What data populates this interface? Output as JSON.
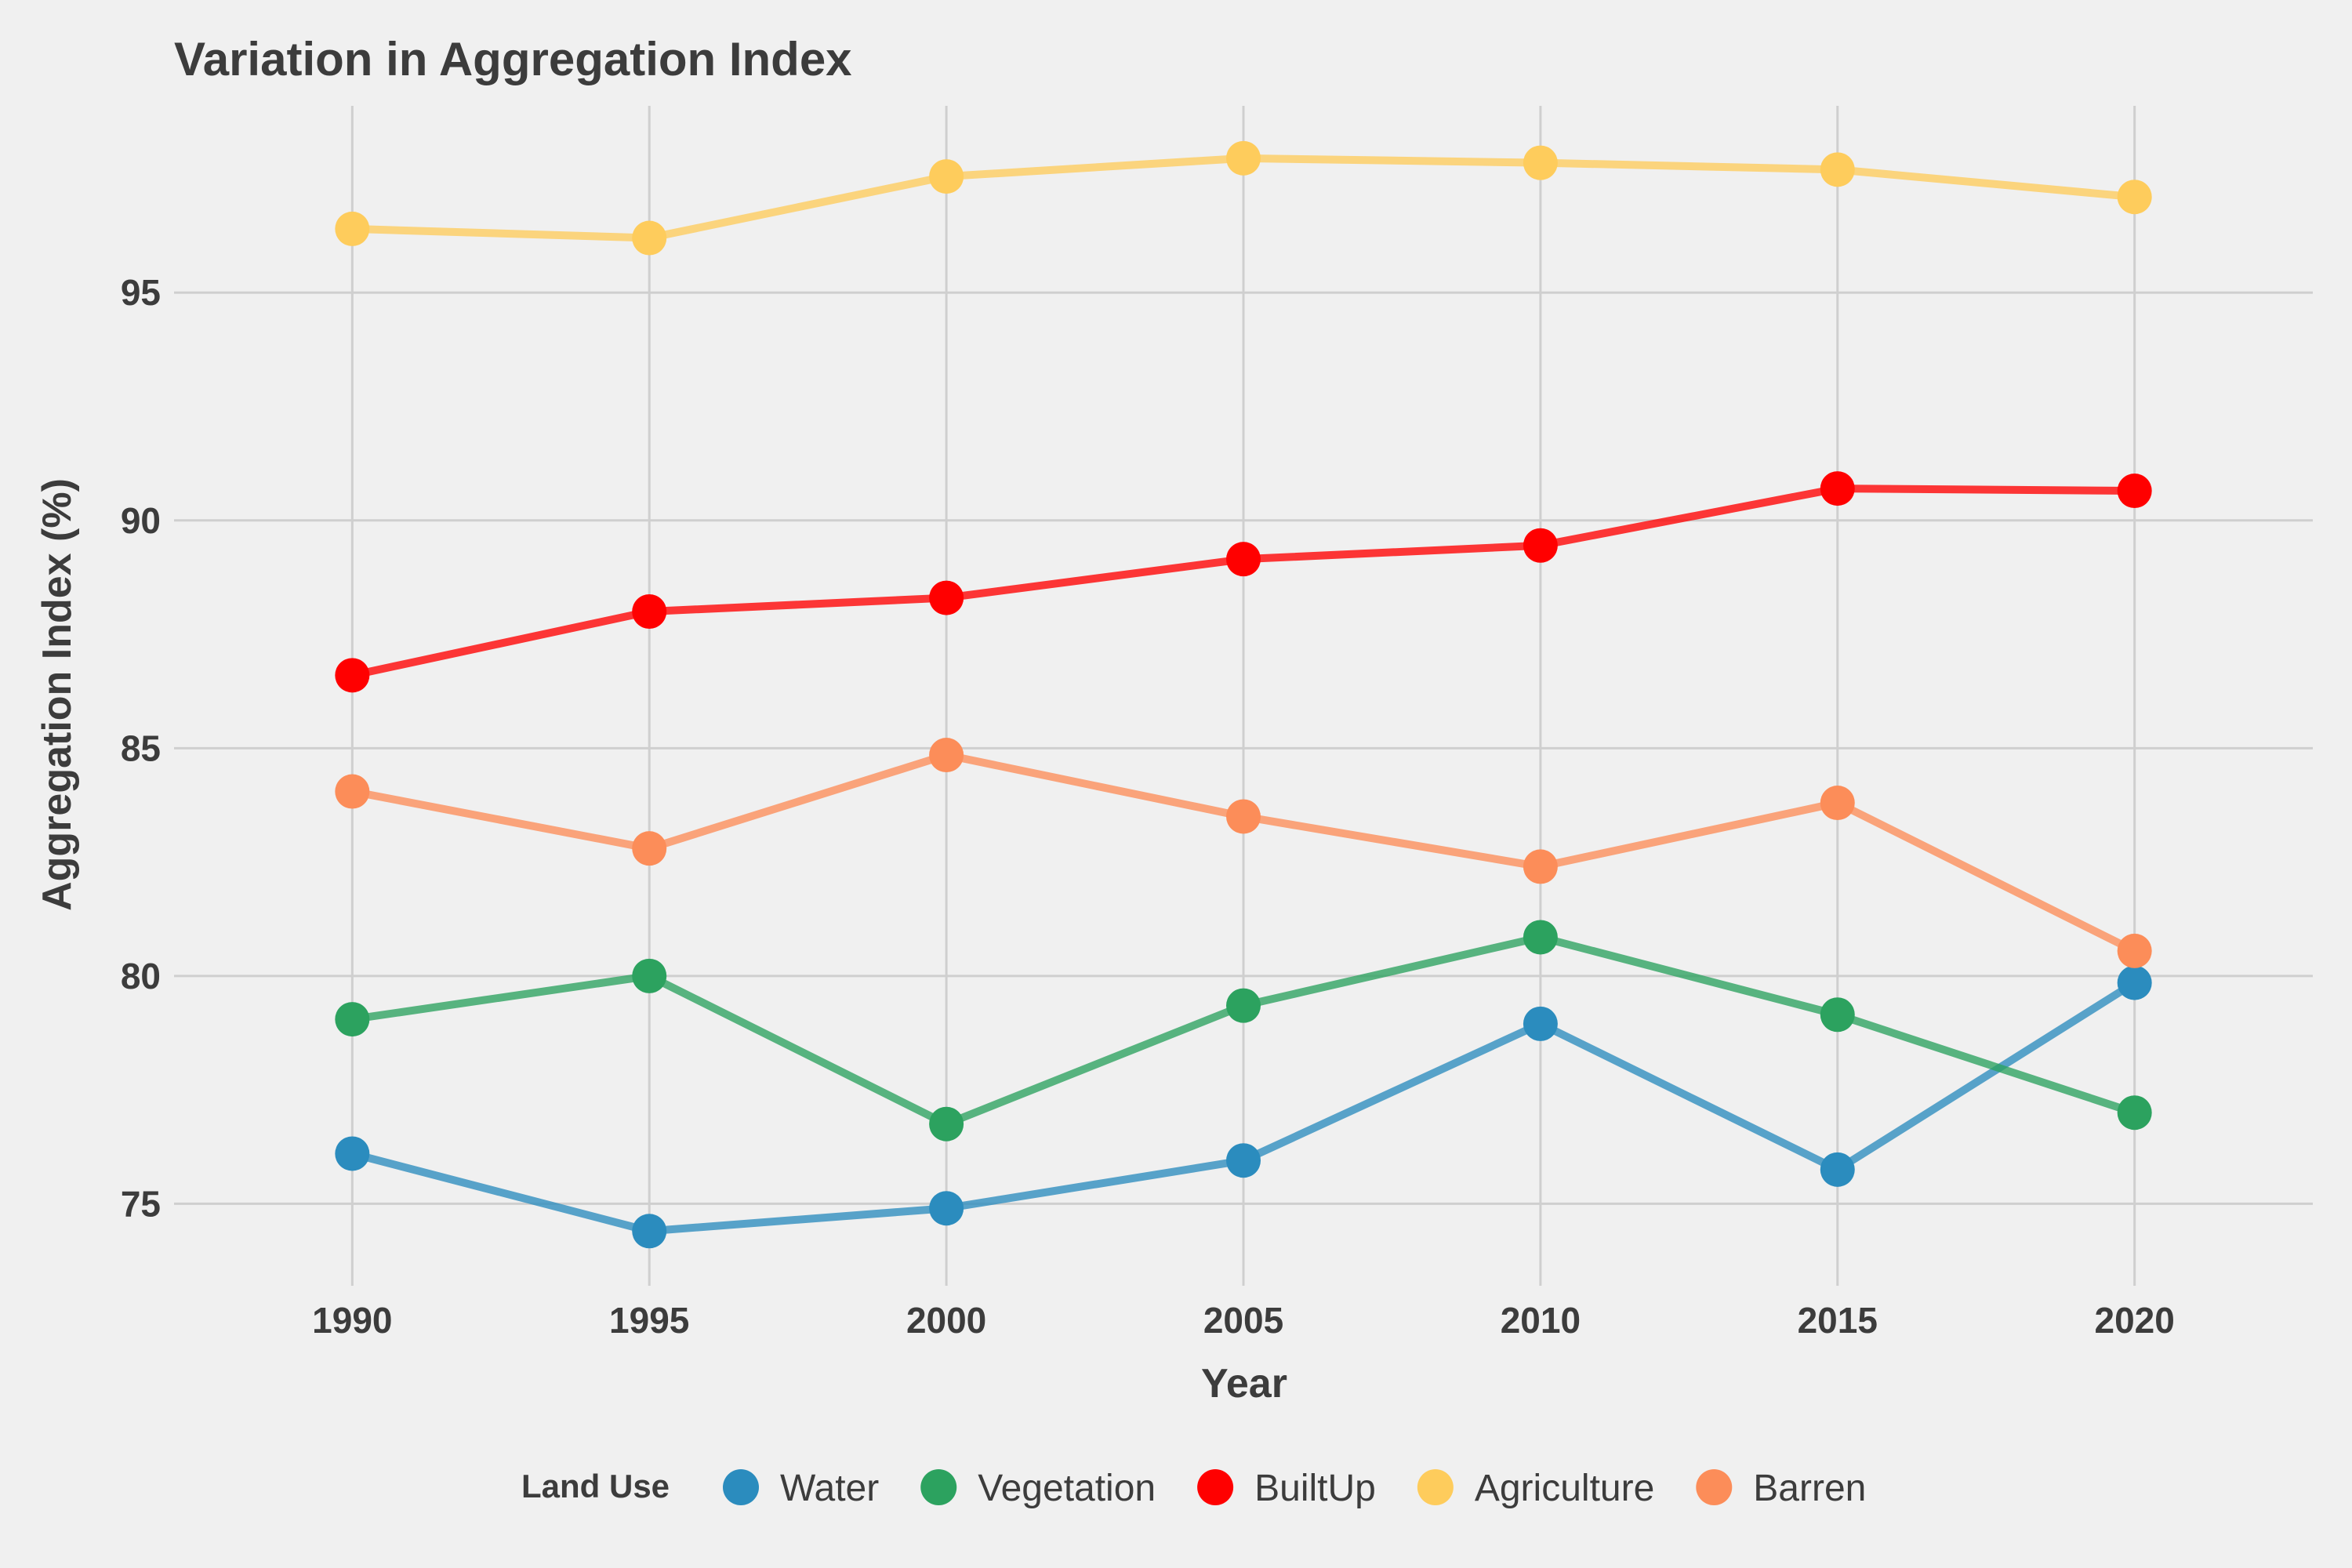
{
  "chart_data": {
    "type": "line",
    "title": "Variation in Aggregation Index",
    "xlabel": "Year",
    "ylabel": "Aggregation Index (%)",
    "x": [
      1990,
      1995,
      2000,
      2005,
      2010,
      2015,
      2020
    ],
    "xlim": [
      1987,
      2023
    ],
    "ylim": [
      73.2,
      99.1
    ],
    "yticks": [
      75,
      80,
      85,
      90,
      95
    ],
    "grid": true,
    "legend": {
      "title": "Land Use",
      "position": "bottom"
    },
    "series": [
      {
        "name": "Water",
        "color": "#2b8cbe",
        "values": [
          76.1,
          74.4,
          74.9,
          75.95,
          78.95,
          75.75,
          79.85
        ]
      },
      {
        "name": "Vegetation",
        "color": "#2ca25f",
        "values": [
          79.05,
          80.0,
          76.75,
          79.35,
          80.85,
          79.15,
          77.0
        ]
      },
      {
        "name": "BuiltUp",
        "color": "#ff0000",
        "values": [
          86.6,
          88.0,
          88.3,
          89.15,
          89.45,
          90.7,
          90.65
        ]
      },
      {
        "name": "Agriculture",
        "color": "#fecc5c",
        "values": [
          96.4,
          96.2,
          97.55,
          97.95,
          97.85,
          97.7,
          97.1
        ]
      },
      {
        "name": "Barren",
        "color": "#fc8d59",
        "values": [
          84.05,
          82.8,
          84.85,
          83.5,
          82.4,
          83.8,
          80.55
        ]
      }
    ]
  }
}
